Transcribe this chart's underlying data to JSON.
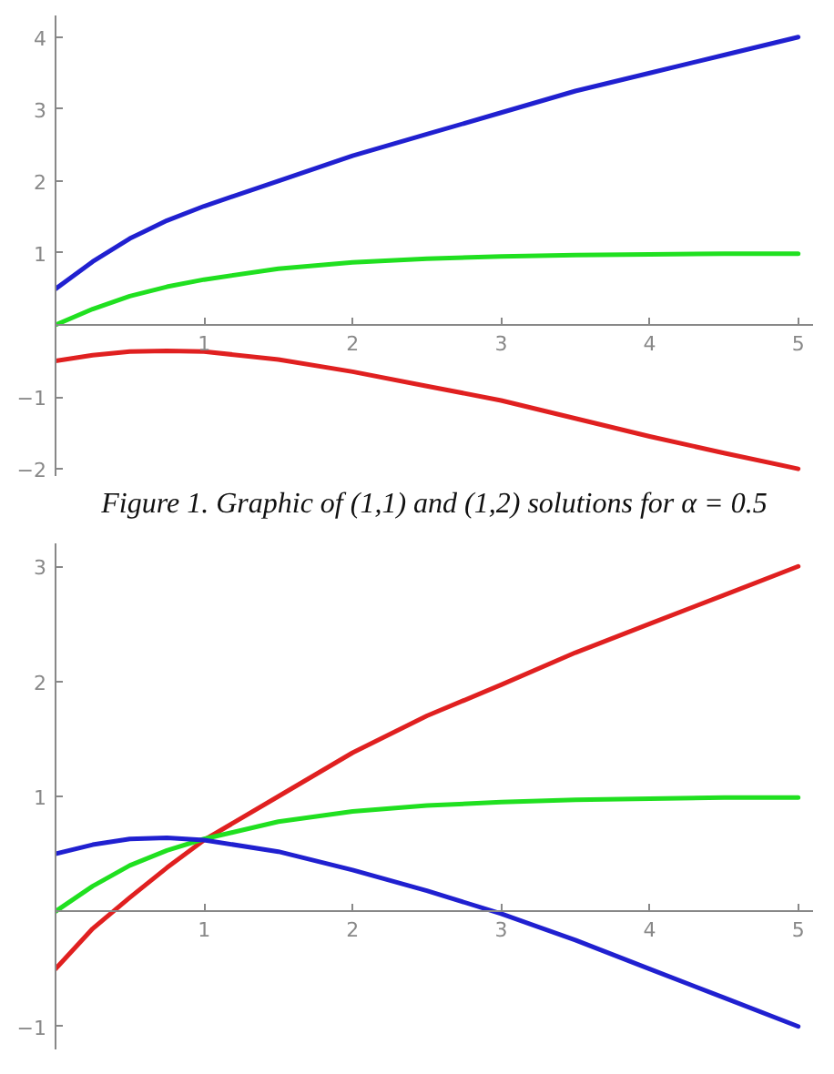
{
  "chart_data": [
    {
      "type": "line",
      "x": [
        0,
        0.25,
        0.5,
        0.75,
        1,
        1.5,
        2,
        2.5,
        3,
        3.5,
        4,
        4.5,
        5
      ],
      "xlim": [
        0,
        5.1
      ],
      "ylim": [
        -2.1,
        4.3
      ],
      "xticks": [
        1,
        2,
        3,
        4,
        5
      ],
      "yticks": [
        -2,
        -1,
        1,
        2,
        3,
        4
      ],
      "grid": false,
      "series": [
        {
          "color": "#2020d0",
          "values": [
            0.5,
            0.88,
            1.2,
            1.45,
            1.65,
            2.0,
            2.35,
            2.65,
            2.95,
            3.25,
            3.5,
            3.75,
            4.0
          ]
        },
        {
          "color": "#20e020",
          "values": [
            0,
            0.22,
            0.4,
            0.53,
            0.63,
            0.78,
            0.87,
            0.92,
            0.95,
            0.97,
            0.98,
            0.99,
            0.99
          ]
        },
        {
          "color": "#e02020",
          "values": [
            -0.5,
            -0.42,
            -0.37,
            -0.36,
            -0.37,
            -0.48,
            -0.65,
            -0.85,
            -1.05,
            -1.3,
            -1.55,
            -1.78,
            -2.0
          ]
        }
      ],
      "annotations": [
        "Figure 1. Graphic of (1,1) and (1,2) solutions for α = 0.5"
      ]
    },
    {
      "type": "line",
      "x": [
        0,
        0.25,
        0.5,
        0.75,
        1,
        1.5,
        2,
        2.5,
        3,
        3.5,
        4,
        4.5,
        5
      ],
      "xlim": [
        0,
        5.1
      ],
      "ylim": [
        -1.2,
        3.2
      ],
      "xticks": [
        1,
        2,
        3,
        4,
        5
      ],
      "yticks": [
        -1,
        1,
        2,
        3
      ],
      "grid": false,
      "series": [
        {
          "color": "#e02020",
          "values": [
            -0.5,
            -0.15,
            0.12,
            0.38,
            0.62,
            1.0,
            1.38,
            1.7,
            1.97,
            2.25,
            2.5,
            2.75,
            3.0
          ]
        },
        {
          "color": "#20e020",
          "values": [
            0,
            0.22,
            0.4,
            0.53,
            0.63,
            0.78,
            0.87,
            0.92,
            0.95,
            0.97,
            0.98,
            0.99,
            0.99
          ]
        },
        {
          "color": "#2020d0",
          "values": [
            0.5,
            0.58,
            0.63,
            0.64,
            0.62,
            0.52,
            0.36,
            0.18,
            -0.02,
            -0.25,
            -0.5,
            -0.75,
            -1.0
          ]
        }
      ]
    }
  ]
}
